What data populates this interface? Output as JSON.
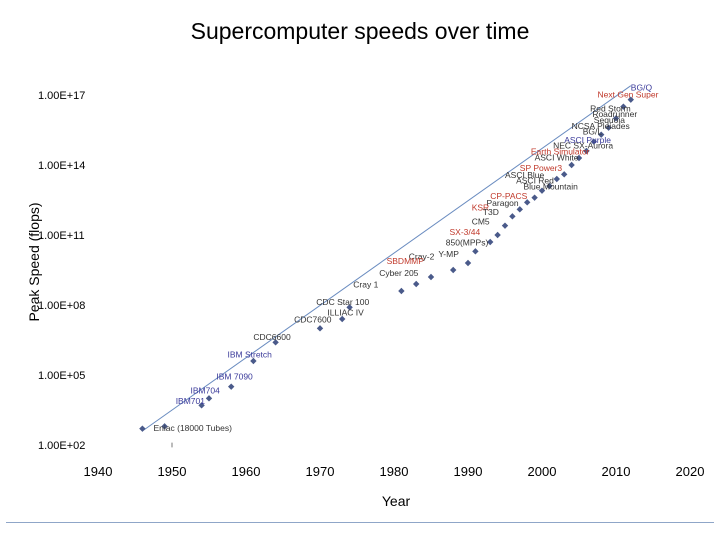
{
  "chart_data": {
    "type": "scatter",
    "title": "Supercomputer speeds over time",
    "xlabel": "Year",
    "ylabel": "Peak Speed (flops)",
    "xlim": [
      1940,
      2020
    ],
    "ylim_log10": [
      2,
      17
    ],
    "x_ticks": [
      1940,
      1950,
      1960,
      1970,
      1980,
      1990,
      2000,
      2010,
      2020
    ],
    "y_ticks": [
      {
        "exp": 17,
        "label": "1.00E+17"
      },
      {
        "exp": 14,
        "label": "1.00E+14"
      },
      {
        "exp": 11,
        "label": "1.00E+11"
      },
      {
        "exp": 8,
        "label": "1.00E+08"
      },
      {
        "exp": 5,
        "label": "1.00E+05"
      },
      {
        "exp": 2,
        "label": "1.00E+02"
      }
    ],
    "grid": false,
    "marker_color": "#4a5a8a",
    "trendline_color": "#6a8cc0",
    "trendline": {
      "x": [
        1946,
        2012
      ],
      "log10_y": [
        2.6,
        17.4
      ]
    },
    "points": [
      {
        "x": 1946,
        "log10_y": 2.7
      },
      {
        "x": 1949,
        "log10_y": 2.8
      },
      {
        "x": 1954,
        "log10_y": 3.7
      },
      {
        "x": 1955,
        "log10_y": 4.0
      },
      {
        "x": 1958,
        "log10_y": 4.5
      },
      {
        "x": 1961,
        "log10_y": 5.6
      },
      {
        "x": 1964,
        "log10_y": 6.4
      },
      {
        "x": 1970,
        "log10_y": 7.0
      },
      {
        "x": 1973,
        "log10_y": 7.4
      },
      {
        "x": 1974,
        "log10_y": 7.9
      },
      {
        "x": 1981,
        "log10_y": 8.6
      },
      {
        "x": 1983,
        "log10_y": 8.9
      },
      {
        "x": 1985,
        "log10_y": 9.2
      },
      {
        "x": 1988,
        "log10_y": 9.5
      },
      {
        "x": 1990,
        "log10_y": 9.8
      },
      {
        "x": 1991,
        "log10_y": 10.3
      },
      {
        "x": 1993,
        "log10_y": 10.7
      },
      {
        "x": 1994,
        "log10_y": 11.0
      },
      {
        "x": 1995,
        "log10_y": 11.4
      },
      {
        "x": 1996,
        "log10_y": 11.8
      },
      {
        "x": 1997,
        "log10_y": 12.1
      },
      {
        "x": 1998,
        "log10_y": 12.4
      },
      {
        "x": 1999,
        "log10_y": 12.6
      },
      {
        "x": 2000,
        "log10_y": 12.9
      },
      {
        "x": 2001,
        "log10_y": 13.1
      },
      {
        "x": 2002,
        "log10_y": 13.4
      },
      {
        "x": 2003,
        "log10_y": 13.6
      },
      {
        "x": 2004,
        "log10_y": 14.0
      },
      {
        "x": 2005,
        "log10_y": 14.3
      },
      {
        "x": 2006,
        "log10_y": 14.6
      },
      {
        "x": 2007,
        "log10_y": 15.0
      },
      {
        "x": 2008,
        "log10_y": 15.3
      },
      {
        "x": 2009,
        "log10_y": 15.6
      },
      {
        "x": 2010,
        "log10_y": 16.0
      },
      {
        "x": 2011,
        "log10_y": 16.5
      },
      {
        "x": 2012,
        "log10_y": 16.8
      }
    ],
    "annotations": [
      {
        "text": "BG/Q",
        "x": 2012,
        "log10_y": 17.2,
        "color": "#3a3a9a"
      },
      {
        "text": "Next Gen Super",
        "x": 2007.5,
        "log10_y": 16.9,
        "color": "#c0392b"
      },
      {
        "text": "Red Storm",
        "x": 2006.5,
        "log10_y": 16.3,
        "color": "#333333"
      },
      {
        "text": "Roadrunner",
        "x": 2006.8,
        "log10_y": 16.05,
        "color": "#333333"
      },
      {
        "text": "Sequoia",
        "x": 2007.0,
        "log10_y": 15.8,
        "color": "#333333"
      },
      {
        "text": "NCSA Pleiades",
        "x": 2004.0,
        "log10_y": 15.55,
        "color": "#333333"
      },
      {
        "text": "BG/L",
        "x": 2005.5,
        "log10_y": 15.3,
        "color": "#333333"
      },
      {
        "text": "ASCI Purple",
        "x": 2003.0,
        "log10_y": 14.95,
        "color": "#3a3a9a"
      },
      {
        "text": "NEC SX-Aurora",
        "x": 2001.5,
        "log10_y": 14.7,
        "color": "#333333"
      },
      {
        "text": "Earth Simulator",
        "x": 1998.5,
        "log10_y": 14.45,
        "color": "#c0392b"
      },
      {
        "text": "ASCI White",
        "x": 1999.0,
        "log10_y": 14.2,
        "color": "#333333"
      },
      {
        "text": "SP Power3",
        "x": 1997.0,
        "log10_y": 13.75,
        "color": "#c0392b"
      },
      {
        "text": "ASCI Blue",
        "x": 1995.0,
        "log10_y": 13.45,
        "color": "#333333"
      },
      {
        "text": "ASCI Red",
        "x": 1996.5,
        "log10_y": 13.2,
        "color": "#333333"
      },
      {
        "text": "Blue Mountain",
        "x": 1997.5,
        "log10_y": 12.95,
        "color": "#333333"
      },
      {
        "text": "CP-PACS",
        "x": 1993.0,
        "log10_y": 12.55,
        "color": "#c0392b"
      },
      {
        "text": "Paragon",
        "x": 1992.5,
        "log10_y": 12.25,
        "color": "#333333"
      },
      {
        "text": "KSR",
        "x": 1990.5,
        "log10_y": 12.05,
        "color": "#c0392b"
      },
      {
        "text": "T3D",
        "x": 1992.0,
        "log10_y": 11.85,
        "color": "#333333"
      },
      {
        "text": "CM5",
        "x": 1990.5,
        "log10_y": 11.45,
        "color": "#333333"
      },
      {
        "text": "SX-3/44",
        "x": 1987.5,
        "log10_y": 11.0,
        "color": "#c0392b"
      },
      {
        "text": "850(MPPs)",
        "x": 1987.0,
        "log10_y": 10.55,
        "color": "#333333"
      },
      {
        "text": "Y-MP",
        "x": 1986.0,
        "log10_y": 10.05,
        "color": "#333333"
      },
      {
        "text": "Cray-2",
        "x": 1982.0,
        "log10_y": 9.95,
        "color": "#333333"
      },
      {
        "text": "SBDMMP",
        "x": 1979.0,
        "log10_y": 9.75,
        "color": "#c0392b"
      },
      {
        "text": "Cyber 205",
        "x": 1978.0,
        "log10_y": 9.25,
        "color": "#333333"
      },
      {
        "text": "Cray 1",
        "x": 1974.5,
        "log10_y": 8.75,
        "color": "#333333"
      },
      {
        "text": "CDC Star 100",
        "x": 1969.5,
        "log10_y": 8.0,
        "color": "#333333"
      },
      {
        "text": "ILLIAC IV",
        "x": 1971.0,
        "log10_y": 7.55,
        "color": "#333333"
      },
      {
        "text": "CDC7600",
        "x": 1966.5,
        "log10_y": 7.25,
        "color": "#333333"
      },
      {
        "text": "CDC6600",
        "x": 1961.0,
        "log10_y": 6.5,
        "color": "#333333"
      },
      {
        "text": "IBM Stretch",
        "x": 1957.5,
        "log10_y": 5.75,
        "color": "#3a3a9a"
      },
      {
        "text": "IBM 7090",
        "x": 1956.0,
        "log10_y": 4.8,
        "color": "#3a3a9a"
      },
      {
        "text": "IBM704",
        "x": 1952.5,
        "log10_y": 4.2,
        "color": "#3a3a9a"
      },
      {
        "text": "IBM701",
        "x": 1950.5,
        "log10_y": 3.75,
        "color": "#3a3a9a"
      },
      {
        "text": "Eniac (18000 Tubes)",
        "x": 1947.5,
        "log10_y": 2.6,
        "color": "#333333"
      }
    ]
  }
}
